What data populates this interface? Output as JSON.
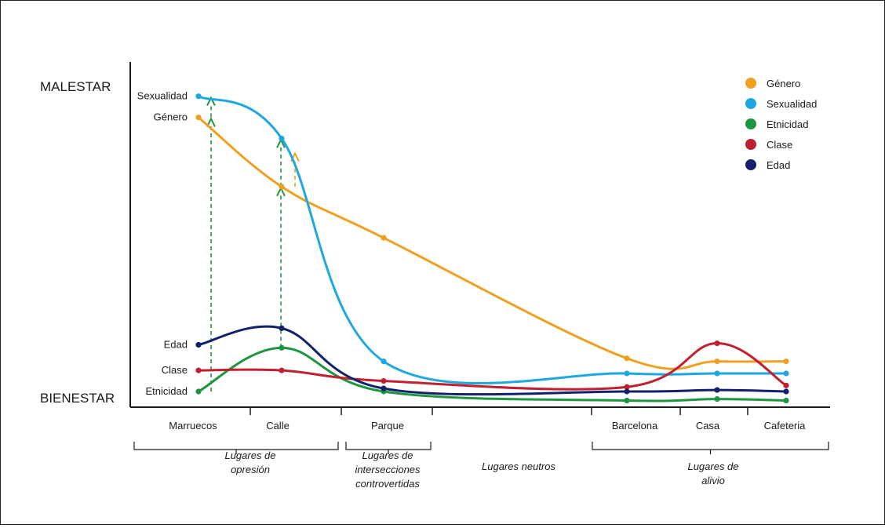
{
  "chart_data": {
    "type": "line",
    "title": "",
    "y_top_label": "MALESTAR",
    "y_bottom_label": "BIENESTAR",
    "categories": [
      "Marruecos",
      "Calle",
      "Parque",
      "Barcelona",
      "Casa",
      "Cafeteria"
    ],
    "groups": [
      {
        "label": [
          "Lugares de",
          "opresión"
        ],
        "categories": [
          "Marruecos",
          "Calle"
        ]
      },
      {
        "label": [
          "Lugares de",
          "intersecciones",
          "controvertidas"
        ],
        "categories": [
          "Parque"
        ]
      },
      {
        "label": [
          "Lugares neutros"
        ],
        "categories": []
      },
      {
        "label": [
          "Lugares de",
          "alivio"
        ],
        "categories": [
          "Barcelona",
          "Casa",
          "Cafeteria"
        ]
      }
    ],
    "series": [
      {
        "name": "Género",
        "color": "#f0a020",
        "start_label": "Género",
        "values": [
          9.1,
          6.8,
          5.1,
          1.1,
          1.0,
          1.0
        ]
      },
      {
        "name": "Sexualidad",
        "color": "#1ea8e0",
        "start_label": "Sexualidad",
        "values": [
          9.8,
          8.4,
          1.0,
          0.6,
          0.6,
          0.6
        ]
      },
      {
        "name": "Etnicidad",
        "color": "#1e9640",
        "start_label": "Etnicidad",
        "values": [
          0.0,
          1.45,
          0.0,
          -0.3,
          -0.25,
          -0.3
        ]
      },
      {
        "name": "Clase",
        "color": "#c0202f",
        "start_label": "Clase",
        "values": [
          0.7,
          0.7,
          0.35,
          0.15,
          1.6,
          0.2
        ]
      },
      {
        "name": "Edad",
        "color": "#13216b",
        "start_label": "Edad",
        "values": [
          1.55,
          2.1,
          0.1,
          0.0,
          0.05,
          0.0
        ]
      }
    ],
    "arrows": [
      {
        "category": "Marruecos",
        "from": 0.0,
        "to": 9.05,
        "color": "#1e9640",
        "dashed": true
      },
      {
        "category": "Marruecos",
        "from": 9.1,
        "to": 9.75,
        "color": "#1e9640",
        "dashed": true
      },
      {
        "category": "Calle",
        "from": 1.45,
        "to": 6.75,
        "color": "#1e9640",
        "dashed": true
      },
      {
        "category": "Calle",
        "from": 6.8,
        "to": 8.35,
        "color": "#1e9640",
        "dashed": true
      },
      {
        "category": "Calle",
        "from": 6.8,
        "to": 7.9,
        "color": "#f0a020",
        "dashed": true
      }
    ],
    "legend_position": "top-right",
    "grid": false
  }
}
